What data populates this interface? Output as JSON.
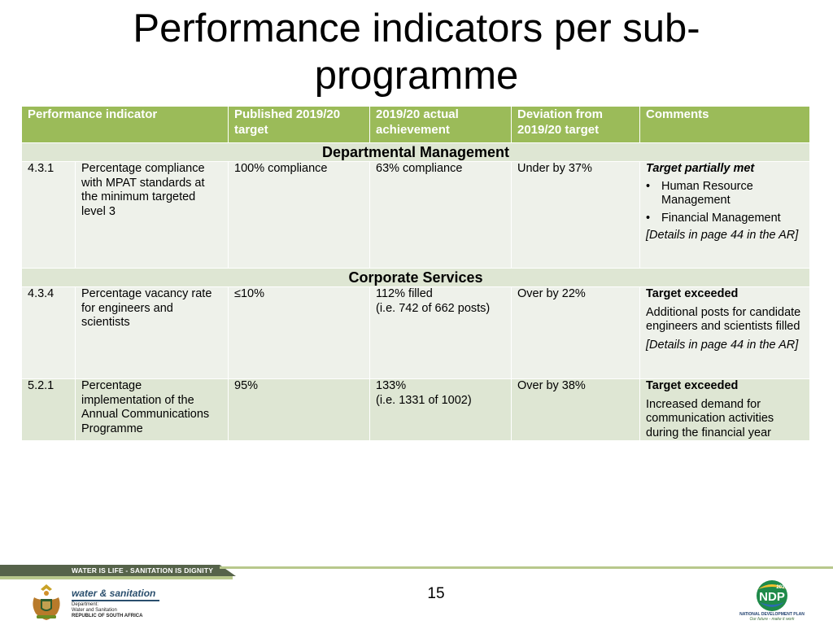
{
  "title": "Performance indicators per sub-programme",
  "table": {
    "headers": [
      "Performance indicator",
      "Published 2019/20 target",
      "2019/20  actual achievement",
      "Deviation from 2019/20 target",
      "Comments"
    ],
    "sections": [
      {
        "name": "Departmental Management",
        "rows": [
          {
            "code": "4.3.1",
            "indicator": "Percentage compliance with MPAT standards at the minimum targeted level 3",
            "target": "100% compliance",
            "achievement": "63% compliance",
            "deviation": "Under by 37%",
            "comment_heading": "Target partially met",
            "comment_bullets": [
              "Human Resource Management",
              "Financial Management"
            ],
            "comment_details": "[Details in page 44 in the AR]"
          }
        ]
      },
      {
        "name": "Corporate Services",
        "rows": [
          {
            "code": "4.3.4",
            "indicator": "Percentage vacancy rate for engineers and scientists",
            "target": "≤10%",
            "achievement_line1": "112% filled",
            "achievement_line2": "(i.e. 742 of 662 posts)",
            "deviation": "Over by 22%",
            "comment_heading": "Target exceeded",
            "comment_text": "Additional posts for candidate engineers and scientists filled",
            "comment_details": "[Details in page 44 in the AR]"
          },
          {
            "code": "5.2.1",
            "indicator": "Percentage implementation of the Annual Communications Programme",
            "target": "95%",
            "achievement_line1": "133%",
            "achievement_line2": "(i.e. 1331 of 1002)",
            "deviation": "Over by 38%",
            "comment_heading": "Target exceeded",
            "comment_text": "Increased demand for communication activities during the financial year"
          }
        ]
      }
    ]
  },
  "footer": {
    "slogan": "WATER IS LIFE - SANITATION IS DIGNITY",
    "page_number": "15",
    "dept_logo": {
      "name": "water & sanitation",
      "line1": "Department:",
      "line2": "Water and Sanitation",
      "line3": "REPUBLIC OF SOUTH AFRICA"
    },
    "ndp_logo": {
      "year": "2030",
      "mark": "NDP",
      "caption": "NATIONAL DEVELOPMENT PLAN",
      "tagline": "Our future - make it work"
    }
  },
  "colors": {
    "header_green": "#9bbb59",
    "row_light": "#eef1ea",
    "row_mid": "#dee6d3",
    "footer_dark": "#56634a",
    "footer_light": "#b8c88c"
  }
}
